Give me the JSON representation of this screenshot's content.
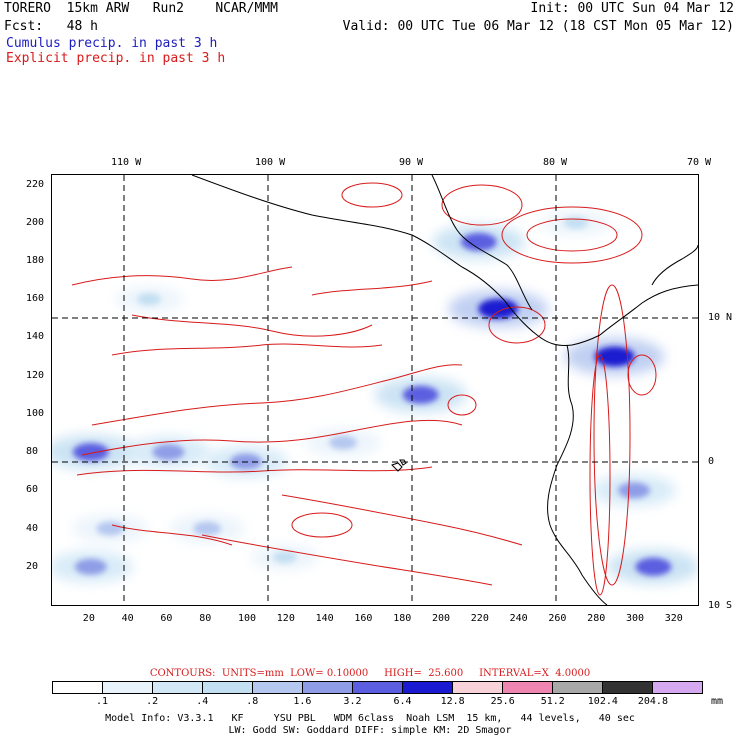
{
  "header": {
    "model": "TORERO  15km ARW   Run2    NCAR/MMM",
    "init": "Init: 00 UTC Sun 04 Mar 12",
    "forecast": "Fcst:   48 h",
    "valid": "Valid: 00 UTC Tue 06 Mar 12 (18 CST Mon 05 Mar 12)",
    "field_cumulus": "Cumulus precip. in past 3 h",
    "field_explicit": "Explicit precip. in past 3 h",
    "cumulus_color": "#1d1dbf",
    "explicit_color": "#d81a1a"
  },
  "chart_data": {
    "type": "heatmap",
    "title": "Cumulus precip. in past 3 h / Explicit precip. in past 3 h",
    "x_ticks": [
      "20",
      "40",
      "60",
      "80",
      "100",
      "120",
      "140",
      "160",
      "180",
      "200",
      "220",
      "240",
      "260",
      "280",
      "300",
      "320"
    ],
    "y_ticks": [
      "20",
      "40",
      "60",
      "80",
      "100",
      "120",
      "140",
      "160",
      "180",
      "200",
      "220"
    ],
    "xlim": [
      0,
      333
    ],
    "ylim": [
      0,
      225
    ],
    "longitude_labels": [
      "110 W",
      "100 W",
      "90 W",
      "80 W",
      "70 W"
    ],
    "latitude_labels": [
      "10 N",
      "0",
      "10 S"
    ],
    "grid": "dashed lat/lon at 10 degree intervals",
    "precip_areas": [
      {
        "x": 20,
        "y": 80,
        "intensity": 5
      },
      {
        "x": 60,
        "y": 80,
        "intensity": 4
      },
      {
        "x": 100,
        "y": 75,
        "intensity": 4
      },
      {
        "x": 150,
        "y": 85,
        "intensity": 3
      },
      {
        "x": 190,
        "y": 110,
        "intensity": 5
      },
      {
        "x": 30,
        "y": 40,
        "intensity": 3
      },
      {
        "x": 80,
        "y": 40,
        "intensity": 3
      },
      {
        "x": 20,
        "y": 20,
        "intensity": 4
      },
      {
        "x": 120,
        "y": 25,
        "intensity": 2
      },
      {
        "x": 220,
        "y": 190,
        "intensity": 5
      },
      {
        "x": 230,
        "y": 155,
        "intensity": 6
      },
      {
        "x": 290,
        "y": 130,
        "intensity": 6
      },
      {
        "x": 300,
        "y": 60,
        "intensity": 4
      },
      {
        "x": 310,
        "y": 20,
        "intensity": 5
      },
      {
        "x": 270,
        "y": 200,
        "intensity": 2
      },
      {
        "x": 50,
        "y": 160,
        "intensity": 2
      }
    ],
    "contour_info": {
      "prefix": "CONTOURS:  UNITS=mm  LOW= 0.10000     HIGH=  25.600     INTERVAL=X  4.0000",
      "units": "mm",
      "low": 0.1,
      "high": 25.6,
      "interval": "X 4.0000"
    },
    "colorbar": {
      "levels": [
        ".1",
        ".2",
        ".4",
        ".8",
        "1.6",
        "3.2",
        "6.4",
        "12.8",
        "25.6",
        "51.2",
        "102.4",
        "204.8"
      ],
      "colors": [
        "#ffffff",
        "#e9f3fb",
        "#d2e8f7",
        "#c3dff2",
        "#b5c8f0",
        "#8f9de7",
        "#5b5ee0",
        "#1a1ad0",
        "#f7d3d9",
        "#ef86b1",
        "#a8a8a8",
        "#333333",
        "#d6a8f0"
      ],
      "units": "mm"
    }
  },
  "footer": {
    "line1": "Model Info: V3.3.1   KF     YSU PBL   WDM 6class  Noah LSM  15 km,   44 levels,   40 sec",
    "line2": "LW: Godd SW: Goddard DIFF: simple KM: 2D Smagor"
  }
}
